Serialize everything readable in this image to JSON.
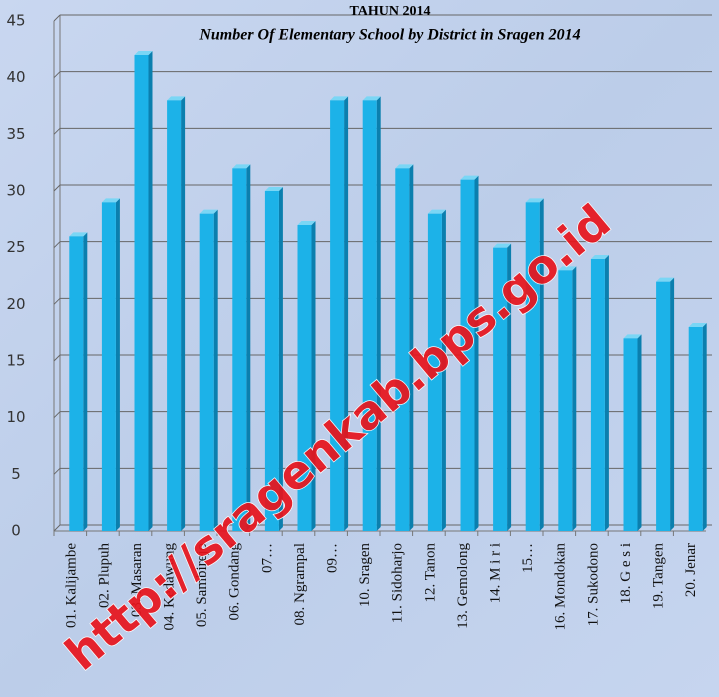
{
  "chart_data": {
    "type": "bar",
    "title": "TAHUN 2014",
    "subtitle": "Number Of Elementary School by District in Sragen 2014",
    "categories": [
      "01. Kalijambe",
      "02. Plupuh",
      "03. Masaran",
      "04. Kedawung",
      "05. Sambirejo",
      "06. Gondang",
      "07…",
      "08. Ngrampal",
      "09…",
      "10. Sragen",
      "11. Sidoharjo",
      "12. Tanon",
      "13. Gemolong",
      "14. M i r i",
      "15…",
      "16. Mondokan",
      "17. Sukodono",
      "18. G e s i",
      "19. Tangen",
      "20. Jenar"
    ],
    "values": [
      26,
      29,
      42,
      38,
      28,
      32,
      30,
      27,
      38,
      38,
      32,
      28,
      31,
      25,
      29,
      23,
      24,
      17,
      22,
      18
    ],
    "color": "#1cb2e8",
    "ylim": [
      0,
      45
    ],
    "yticks": [
      0,
      5,
      10,
      15,
      20,
      25,
      30,
      35,
      40,
      45
    ],
    "grid": true,
    "watermark": "http://sragenkab.bps.go.id"
  }
}
